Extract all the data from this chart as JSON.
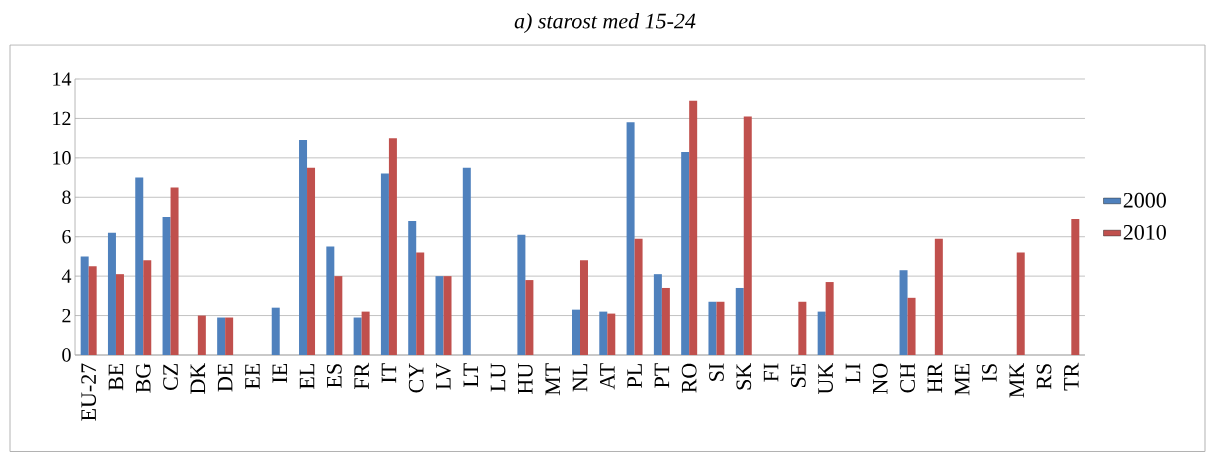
{
  "chart_data": {
    "type": "bar",
    "title": "a) starost med 15-24",
    "categories": [
      "EU-27",
      "BE",
      "BG",
      "CZ",
      "DK",
      "DE",
      "EE",
      "IE",
      "EL",
      "ES",
      "FR",
      "IT",
      "CY",
      "LV",
      "LT",
      "LU",
      "HU",
      "MT",
      "NL",
      "AT",
      "PL",
      "PT",
      "RO",
      "SI",
      "SK",
      "FI",
      "SE",
      "UK",
      "LI",
      "NO",
      "CH",
      "HR",
      "ME",
      "IS",
      "MK",
      "RS",
      "TR"
    ],
    "series": [
      {
        "name": "2000",
        "color": "#4f81bd",
        "values": [
          5.0,
          6.2,
          9.0,
          7.0,
          null,
          1.9,
          null,
          2.4,
          10.9,
          5.5,
          1.9,
          9.2,
          6.8,
          4.0,
          9.5,
          null,
          6.1,
          null,
          2.3,
          2.2,
          11.8,
          4.1,
          10.3,
          2.7,
          3.4,
          null,
          null,
          2.2,
          null,
          null,
          4.3,
          null,
          null,
          null,
          null,
          null,
          null
        ]
      },
      {
        "name": "2010",
        "color": "#c0504d",
        "values": [
          4.5,
          4.1,
          4.8,
          8.5,
          2.0,
          1.9,
          null,
          null,
          9.5,
          4.0,
          2.2,
          11.0,
          5.2,
          4.0,
          null,
          null,
          3.8,
          null,
          4.8,
          2.1,
          5.9,
          3.4,
          12.9,
          2.7,
          12.1,
          null,
          2.7,
          3.7,
          null,
          null,
          2.9,
          5.9,
          null,
          null,
          5.2,
          null,
          6.9
        ]
      }
    ],
    "ylim": [
      0,
      14
    ],
    "yticks": [
      0,
      2,
      4,
      6,
      8,
      10,
      12,
      14
    ],
    "grid": "y",
    "legend": "right"
  }
}
